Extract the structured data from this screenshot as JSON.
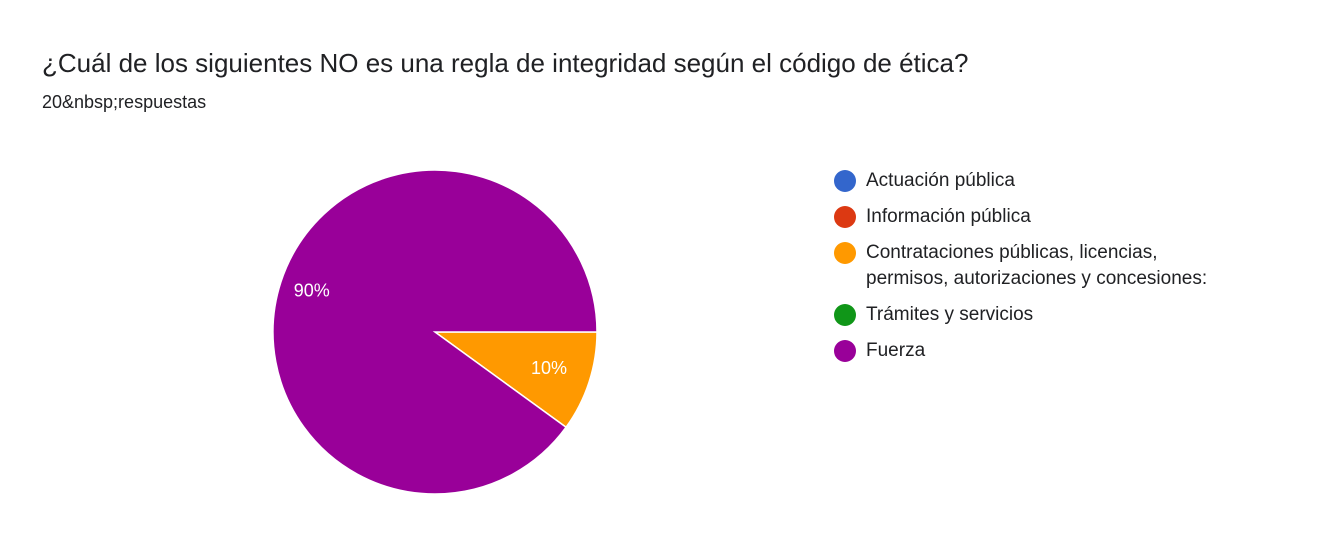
{
  "question": {
    "title": "¿Cuál de los siguientes NO es una regla de integridad según el código de ética?",
    "responses": "20&nbsp;respuestas"
  },
  "chart_data": {
    "type": "pie",
    "categories": [
      "Actuación pública",
      "Información pública",
      "Contrataciones públicas, licencias, permisos, autorizaciones y concesiones:",
      "Trámites y servicios",
      "Fuerza"
    ],
    "values": [
      0,
      0,
      10,
      0,
      90
    ],
    "slice_labels": [
      "",
      "",
      "10%",
      "",
      "90%"
    ],
    "colors": [
      "#3366cc",
      "#dc3912",
      "#ff9900",
      "#109618",
      "#990099"
    ],
    "legend_placement": "right",
    "legend_lines": [
      [
        "Actuación pública"
      ],
      [
        "Información pública"
      ],
      [
        "Contrataciones públicas, licencias,",
        "permisos, autorizaciones y concesiones:"
      ],
      [
        "Trámites y servicios"
      ],
      [
        "Fuerza"
      ]
    ]
  }
}
